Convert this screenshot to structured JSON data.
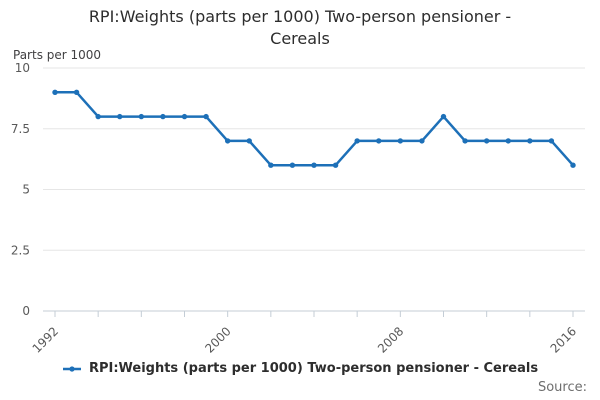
{
  "header": {
    "title_line1": "RPI:Weights (parts per 1000) Two-person pensioner -",
    "title_line2": "Cereals"
  },
  "chart_data": {
    "type": "line",
    "title": "RPI:Weights (parts per 1000) Two-person pensioner - Cereals",
    "ylabel": "Parts per 1000",
    "xlabel": "",
    "x": [
      1992,
      1993,
      1994,
      1995,
      1996,
      1997,
      1998,
      1999,
      2000,
      2001,
      2002,
      2003,
      2004,
      2005,
      2006,
      2007,
      2008,
      2009,
      2010,
      2011,
      2012,
      2013,
      2014,
      2015,
      2016
    ],
    "series": [
      {
        "name": "RPI:Weights (parts per 1000) Two-person pensioner - Cereals",
        "color": "#1d70b8",
        "values": [
          9,
          9,
          8,
          8,
          8,
          8,
          8,
          8,
          7,
          7,
          6,
          6,
          6,
          6,
          7,
          7,
          7,
          7,
          8,
          7,
          7,
          7,
          7,
          7,
          6
        ]
      }
    ],
    "ylim": [
      0,
      10
    ],
    "y_ticks": {
      "values": [
        0,
        2.5,
        5,
        7.5,
        10
      ],
      "labels": [
        "0",
        "2.5",
        "5",
        "7.5",
        "10"
      ]
    },
    "x_minor_tick_years": [
      1992,
      1994,
      1996,
      1998,
      2000,
      2002,
      2004,
      2006,
      2008,
      2010,
      2012,
      2014,
      2016
    ],
    "x_labeled_ticks": [
      {
        "year": 1992,
        "label": "1992"
      },
      {
        "year": 2000,
        "label": "2000"
      },
      {
        "year": 2008,
        "label": "2008"
      },
      {
        "year": 2016,
        "label": "2016"
      }
    ],
    "grid": "horizontal",
    "legend_position": "bottom"
  },
  "legend": {
    "items": [
      {
        "label": "RPI:Weights (parts per 1000) Two-person pensioner - Cereals",
        "color": "#1d70b8"
      }
    ]
  },
  "footer": {
    "source_label": "Source:"
  },
  "colors": {
    "line": "#1d70b8",
    "grid": "#e6e6e6",
    "axis_line": "#c4cdd6",
    "tick_text": "#595959",
    "title_text": "#2d2d2d",
    "source_text": "#6e6e6e",
    "background": "#ffffff"
  }
}
